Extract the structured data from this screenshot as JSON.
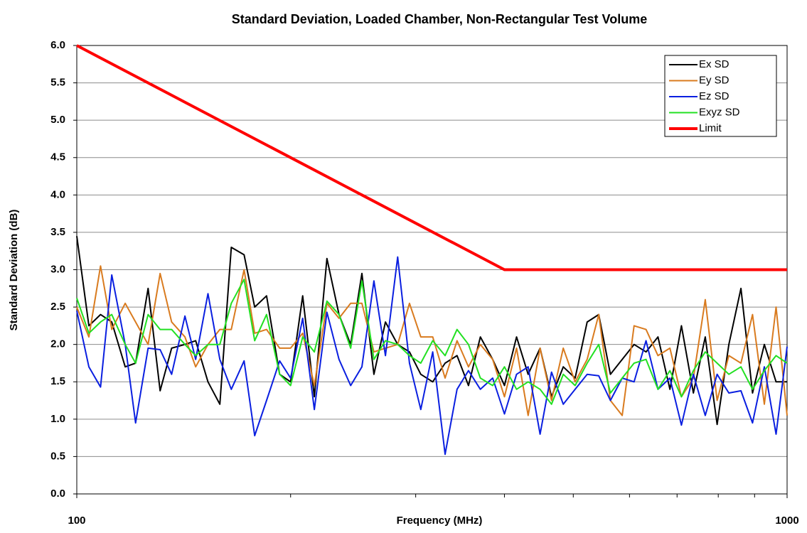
{
  "chart_data": {
    "type": "line",
    "title": "Standard Deviation, Loaded Chamber, Non-Rectangular Test Volume",
    "x_label": "Frequency (MHz)",
    "y_label": "Standard Deviation (dB)",
    "x_scale": "log",
    "xlim": [
      100,
      1000
    ],
    "xticks": [
      100,
      1000
    ],
    "xminor_ticks": [
      200,
      300,
      400,
      500,
      600,
      700,
      800,
      900
    ],
    "ylim": [
      0,
      6
    ],
    "yticks": [
      {
        "value": 0,
        "label": "0.0"
      },
      {
        "value": 0.5,
        "label": "0.5"
      },
      {
        "value": 1,
        "label": "1.0"
      },
      {
        "value": 1.5,
        "label": "1.5"
      },
      {
        "value": 2,
        "label": "2.0"
      },
      {
        "value": 2.5,
        "label": "2.5"
      },
      {
        "value": 3,
        "label": "3.0"
      },
      {
        "value": 3.5,
        "label": "3.5"
      },
      {
        "value": 4,
        "label": "4.0"
      },
      {
        "value": 4.5,
        "label": "4.5"
      },
      {
        "value": 5,
        "label": "5.0"
      },
      {
        "value": 5.5,
        "label": "5.5"
      },
      {
        "value": 6,
        "label": "6.0"
      }
    ],
    "grid": true,
    "legend": "top-right",
    "x": [
      100,
      104,
      108,
      112,
      117,
      121,
      126,
      131,
      136,
      142,
      147,
      153,
      159,
      165,
      172,
      178,
      185,
      193,
      200,
      208,
      216,
      225,
      234,
      243,
      252,
      262,
      272,
      283,
      294,
      305,
      317,
      330,
      343,
      356,
      370,
      385,
      400,
      416,
      432,
      449,
      466,
      484,
      503,
      523,
      543,
      564,
      586,
      609,
      633,
      658,
      684,
      710,
      738,
      767,
      797,
      828,
      861,
      894,
      929,
      965,
      1000
    ],
    "series": [
      {
        "name": "Ex SD",
        "color": "#000000",
        "values": [
          3.45,
          2.25,
          2.4,
          2.3,
          1.7,
          1.75,
          2.75,
          1.38,
          1.95,
          2.0,
          2.05,
          1.5,
          1.2,
          3.3,
          3.2,
          2.5,
          2.65,
          1.6,
          1.5,
          2.65,
          1.3,
          3.15,
          2.4,
          2.0,
          2.95,
          1.6,
          2.3,
          2.0,
          1.9,
          1.6,
          1.5,
          1.75,
          1.85,
          1.45,
          2.1,
          1.8,
          1.45,
          2.1,
          1.6,
          1.95,
          1.3,
          1.7,
          1.55,
          2.3,
          2.4,
          1.6,
          1.8,
          2.0,
          1.9,
          2.1,
          1.4,
          2.25,
          1.35,
          2.1,
          0.93,
          2.0,
          2.75,
          1.35,
          2.0,
          1.5,
          1.5
        ]
      },
      {
        "name": "Ey SD",
        "color": "#d97b1f",
        "values": [
          2.5,
          2.1,
          3.05,
          2.2,
          2.55,
          2.3,
          2.0,
          2.95,
          2.3,
          2.1,
          1.7,
          2.0,
          2.2,
          2.2,
          3.0,
          2.15,
          2.2,
          1.95,
          1.95,
          2.15,
          1.45,
          2.55,
          2.35,
          2.55,
          2.55,
          1.9,
          1.95,
          2.0,
          2.55,
          2.1,
          2.1,
          1.55,
          2.05,
          1.7,
          2.0,
          1.8,
          1.3,
          1.95,
          1.05,
          1.95,
          1.25,
          1.95,
          1.5,
          1.8,
          2.4,
          1.25,
          1.05,
          2.25,
          2.2,
          1.85,
          1.95,
          1.3,
          1.55,
          2.6,
          1.25,
          1.85,
          1.75,
          2.4,
          1.2,
          2.5,
          1.05
        ]
      },
      {
        "name": "Ez SD",
        "color": "#0a1fe0",
        "values": [
          2.45,
          1.7,
          1.43,
          2.93,
          2.0,
          0.95,
          1.95,
          1.93,
          1.6,
          2.38,
          1.8,
          2.68,
          1.8,
          1.4,
          1.78,
          0.78,
          1.25,
          1.78,
          1.55,
          2.35,
          1.13,
          2.43,
          1.8,
          1.45,
          1.7,
          2.85,
          1.85,
          3.17,
          1.75,
          1.13,
          1.9,
          0.53,
          1.4,
          1.65,
          1.4,
          1.55,
          1.07,
          1.6,
          1.7,
          0.8,
          1.63,
          1.2,
          1.4,
          1.6,
          1.58,
          1.25,
          1.55,
          1.5,
          2.05,
          1.4,
          1.55,
          0.92,
          1.6,
          1.05,
          1.6,
          1.35,
          1.38,
          0.95,
          1.7,
          0.8,
          1.97
        ]
      },
      {
        "name": "Exyz SD",
        "color": "#22e022",
        "values": [
          2.62,
          2.15,
          2.3,
          2.4,
          2.0,
          1.75,
          2.4,
          2.2,
          2.2,
          2.0,
          1.85,
          2.0,
          2.0,
          2.55,
          2.87,
          2.05,
          2.4,
          1.6,
          1.45,
          2.1,
          1.9,
          2.58,
          2.4,
          1.95,
          2.85,
          1.8,
          2.05,
          2.0,
          1.85,
          1.75,
          2.05,
          1.85,
          2.2,
          2.0,
          1.55,
          1.45,
          1.7,
          1.4,
          1.5,
          1.4,
          1.2,
          1.6,
          1.45,
          1.75,
          2.0,
          1.35,
          1.55,
          1.75,
          1.8,
          1.4,
          1.65,
          1.3,
          1.65,
          1.9,
          1.75,
          1.6,
          1.7,
          1.4,
          1.65,
          1.85,
          1.75
        ]
      },
      {
        "name": "Limit",
        "color": "#ff0000",
        "x": [
          100,
          400,
          1000
        ],
        "values": [
          6,
          3,
          3
        ]
      }
    ]
  }
}
